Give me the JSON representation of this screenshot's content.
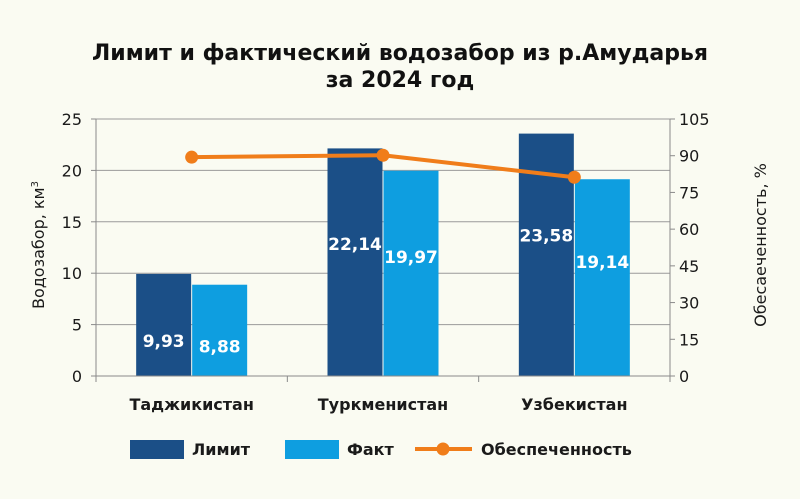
{
  "chart_data": {
    "type": "bar",
    "title_line1": "Лимит и фактический водозабор из р.Амударья",
    "title_line2": "за 2024 год",
    "categories": [
      "Таджикистан",
      "Туркменистан",
      "Узбекистан"
    ],
    "series": [
      {
        "name": "Лимит",
        "type": "bar",
        "axis": "left",
        "color": "#1b4f87",
        "values": [
          9.93,
          22.14,
          23.58
        ],
        "labels": [
          "9,93",
          "22,14",
          "23,58"
        ]
      },
      {
        "name": "Факт",
        "type": "bar",
        "axis": "left",
        "color": "#0e9ee0",
        "values": [
          8.88,
          19.97,
          19.14
        ],
        "labels": [
          "8,88",
          "19,97",
          "19,14"
        ]
      },
      {
        "name": "Обеспеченность",
        "type": "line",
        "axis": "right",
        "color": "#f07d1a",
        "values": [
          89.4,
          90.2,
          81.2
        ]
      }
    ],
    "ylabel_left": "Водозабор, км",
    "ylabel_left_sup": "3",
    "ylabel_right": "Обесаеченность, %",
    "ylim_left": [
      0,
      25
    ],
    "yticks_left": [
      0,
      5,
      10,
      15,
      20,
      25
    ],
    "ylim_right": [
      0,
      105
    ],
    "yticks_right": [
      0,
      15,
      30,
      45,
      60,
      75,
      90,
      105
    ],
    "grid": "horizontal",
    "legend_position": "bottom"
  }
}
